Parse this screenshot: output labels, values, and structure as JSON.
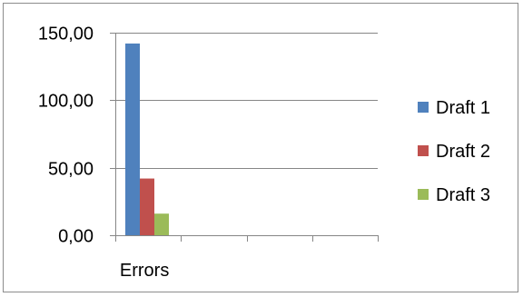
{
  "chart_data": {
    "type": "bar",
    "categories": [
      "Errors",
      "",
      "",
      ""
    ],
    "series": [
      {
        "name": "Draft 1",
        "values": [
          142,
          null,
          null,
          null
        ],
        "color": "#4f81bd"
      },
      {
        "name": "Draft 2",
        "values": [
          42,
          null,
          null,
          null
        ],
        "color": "#c0504d"
      },
      {
        "name": "Draft 3",
        "values": [
          16,
          null,
          null,
          null
        ],
        "color": "#9bbb59"
      }
    ],
    "ylim": [
      0,
      150
    ],
    "yticks": [
      0,
      50,
      100,
      150
    ],
    "ytick_labels": [
      "0,00",
      "50,00",
      "100,00",
      "150,00"
    ],
    "grid": true,
    "legend_position": "right",
    "title": "",
    "xlabel": "",
    "ylabel": ""
  }
}
